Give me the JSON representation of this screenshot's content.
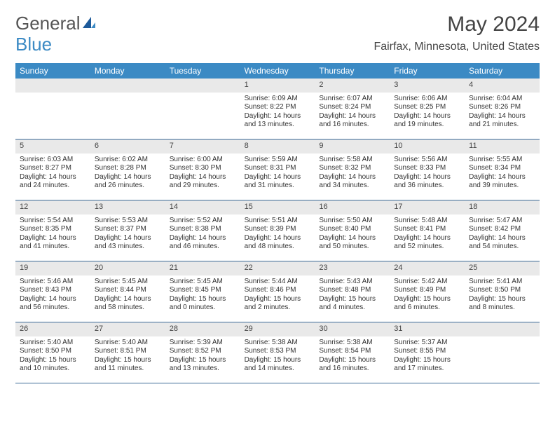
{
  "logo": {
    "word1": "General",
    "word2": "Blue"
  },
  "title": "May 2024",
  "location": "Fairfax, Minnesota, United States",
  "colors": {
    "header_bg": "#3b8ac4",
    "header_fg": "#ffffff",
    "band_bg": "#e9e9e9",
    "week_divider": "#3b6a97",
    "page_bg": "#ffffff",
    "text": "#333333",
    "logo_gray": "#555555",
    "logo_blue": "#3b8ac4"
  },
  "daynames": [
    "Sunday",
    "Monday",
    "Tuesday",
    "Wednesday",
    "Thursday",
    "Friday",
    "Saturday"
  ],
  "weeks": [
    [
      {
        "blank": true
      },
      {
        "blank": true
      },
      {
        "blank": true
      },
      {
        "num": "1",
        "sunrise": "6:09 AM",
        "sunset": "8:22 PM",
        "daylight_a": "Daylight: 14 hours",
        "daylight_b": "and 13 minutes."
      },
      {
        "num": "2",
        "sunrise": "6:07 AM",
        "sunset": "8:24 PM",
        "daylight_a": "Daylight: 14 hours",
        "daylight_b": "and 16 minutes."
      },
      {
        "num": "3",
        "sunrise": "6:06 AM",
        "sunset": "8:25 PM",
        "daylight_a": "Daylight: 14 hours",
        "daylight_b": "and 19 minutes."
      },
      {
        "num": "4",
        "sunrise": "6:04 AM",
        "sunset": "8:26 PM",
        "daylight_a": "Daylight: 14 hours",
        "daylight_b": "and 21 minutes."
      }
    ],
    [
      {
        "num": "5",
        "sunrise": "6:03 AM",
        "sunset": "8:27 PM",
        "daylight_a": "Daylight: 14 hours",
        "daylight_b": "and 24 minutes."
      },
      {
        "num": "6",
        "sunrise": "6:02 AM",
        "sunset": "8:28 PM",
        "daylight_a": "Daylight: 14 hours",
        "daylight_b": "and 26 minutes."
      },
      {
        "num": "7",
        "sunrise": "6:00 AM",
        "sunset": "8:30 PM",
        "daylight_a": "Daylight: 14 hours",
        "daylight_b": "and 29 minutes."
      },
      {
        "num": "8",
        "sunrise": "5:59 AM",
        "sunset": "8:31 PM",
        "daylight_a": "Daylight: 14 hours",
        "daylight_b": "and 31 minutes."
      },
      {
        "num": "9",
        "sunrise": "5:58 AM",
        "sunset": "8:32 PM",
        "daylight_a": "Daylight: 14 hours",
        "daylight_b": "and 34 minutes."
      },
      {
        "num": "10",
        "sunrise": "5:56 AM",
        "sunset": "8:33 PM",
        "daylight_a": "Daylight: 14 hours",
        "daylight_b": "and 36 minutes."
      },
      {
        "num": "11",
        "sunrise": "5:55 AM",
        "sunset": "8:34 PM",
        "daylight_a": "Daylight: 14 hours",
        "daylight_b": "and 39 minutes."
      }
    ],
    [
      {
        "num": "12",
        "sunrise": "5:54 AM",
        "sunset": "8:35 PM",
        "daylight_a": "Daylight: 14 hours",
        "daylight_b": "and 41 minutes."
      },
      {
        "num": "13",
        "sunrise": "5:53 AM",
        "sunset": "8:37 PM",
        "daylight_a": "Daylight: 14 hours",
        "daylight_b": "and 43 minutes."
      },
      {
        "num": "14",
        "sunrise": "5:52 AM",
        "sunset": "8:38 PM",
        "daylight_a": "Daylight: 14 hours",
        "daylight_b": "and 46 minutes."
      },
      {
        "num": "15",
        "sunrise": "5:51 AM",
        "sunset": "8:39 PM",
        "daylight_a": "Daylight: 14 hours",
        "daylight_b": "and 48 minutes."
      },
      {
        "num": "16",
        "sunrise": "5:50 AM",
        "sunset": "8:40 PM",
        "daylight_a": "Daylight: 14 hours",
        "daylight_b": "and 50 minutes."
      },
      {
        "num": "17",
        "sunrise": "5:48 AM",
        "sunset": "8:41 PM",
        "daylight_a": "Daylight: 14 hours",
        "daylight_b": "and 52 minutes."
      },
      {
        "num": "18",
        "sunrise": "5:47 AM",
        "sunset": "8:42 PM",
        "daylight_a": "Daylight: 14 hours",
        "daylight_b": "and 54 minutes."
      }
    ],
    [
      {
        "num": "19",
        "sunrise": "5:46 AM",
        "sunset": "8:43 PM",
        "daylight_a": "Daylight: 14 hours",
        "daylight_b": "and 56 minutes."
      },
      {
        "num": "20",
        "sunrise": "5:45 AM",
        "sunset": "8:44 PM",
        "daylight_a": "Daylight: 14 hours",
        "daylight_b": "and 58 minutes."
      },
      {
        "num": "21",
        "sunrise": "5:45 AM",
        "sunset": "8:45 PM",
        "daylight_a": "Daylight: 15 hours",
        "daylight_b": "and 0 minutes."
      },
      {
        "num": "22",
        "sunrise": "5:44 AM",
        "sunset": "8:46 PM",
        "daylight_a": "Daylight: 15 hours",
        "daylight_b": "and 2 minutes."
      },
      {
        "num": "23",
        "sunrise": "5:43 AM",
        "sunset": "8:48 PM",
        "daylight_a": "Daylight: 15 hours",
        "daylight_b": "and 4 minutes."
      },
      {
        "num": "24",
        "sunrise": "5:42 AM",
        "sunset": "8:49 PM",
        "daylight_a": "Daylight: 15 hours",
        "daylight_b": "and 6 minutes."
      },
      {
        "num": "25",
        "sunrise": "5:41 AM",
        "sunset": "8:50 PM",
        "daylight_a": "Daylight: 15 hours",
        "daylight_b": "and 8 minutes."
      }
    ],
    [
      {
        "num": "26",
        "sunrise": "5:40 AM",
        "sunset": "8:50 PM",
        "daylight_a": "Daylight: 15 hours",
        "daylight_b": "and 10 minutes."
      },
      {
        "num": "27",
        "sunrise": "5:40 AM",
        "sunset": "8:51 PM",
        "daylight_a": "Daylight: 15 hours",
        "daylight_b": "and 11 minutes."
      },
      {
        "num": "28",
        "sunrise": "5:39 AM",
        "sunset": "8:52 PM",
        "daylight_a": "Daylight: 15 hours",
        "daylight_b": "and 13 minutes."
      },
      {
        "num": "29",
        "sunrise": "5:38 AM",
        "sunset": "8:53 PM",
        "daylight_a": "Daylight: 15 hours",
        "daylight_b": "and 14 minutes."
      },
      {
        "num": "30",
        "sunrise": "5:38 AM",
        "sunset": "8:54 PM",
        "daylight_a": "Daylight: 15 hours",
        "daylight_b": "and 16 minutes."
      },
      {
        "num": "31",
        "sunrise": "5:37 AM",
        "sunset": "8:55 PM",
        "daylight_a": "Daylight: 15 hours",
        "daylight_b": "and 17 minutes."
      },
      {
        "blank": true
      }
    ]
  ]
}
